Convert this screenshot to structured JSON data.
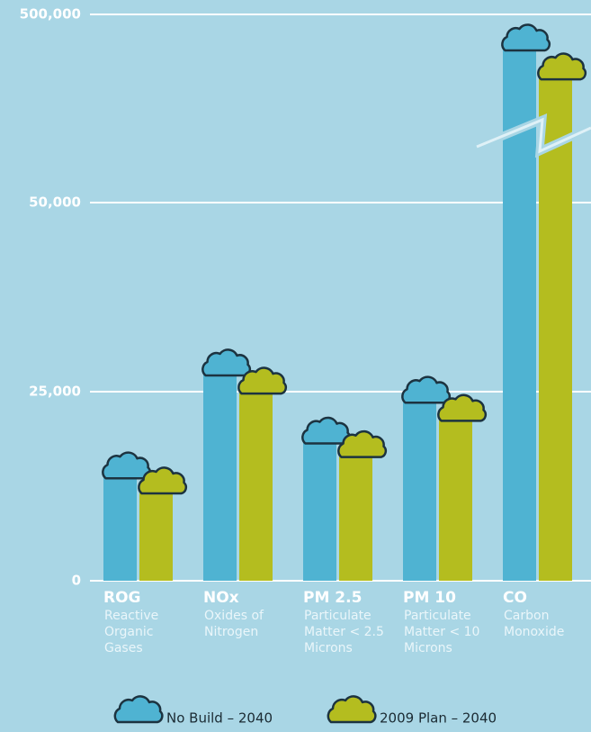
{
  "chart_data": {
    "type": "bar",
    "categories": [
      "ROG",
      "NOx",
      "PM 2.5",
      "PM 10",
      "CO"
    ],
    "descriptions": [
      [
        "Reactive",
        "Organic",
        "Gases"
      ],
      [
        "Oxides of",
        "Nitrogen"
      ],
      [
        "Particulate",
        "Matter < 2.5",
        "Microns"
      ],
      [
        "Particulate",
        "Matter < 10",
        "Microns"
      ],
      [
        "Carbon",
        "Monoxide"
      ]
    ],
    "series": [
      {
        "name": "No Build – 2040",
        "color": "#4fb3d2",
        "values": [
          14500,
          28100,
          19100,
          24500,
          431000
        ]
      },
      {
        "name": "2009 Plan – 2040",
        "color": "#b4bd1f",
        "values": [
          12500,
          25700,
          17300,
          22100,
          362000
        ]
      }
    ],
    "ylim": [
      0,
      500000
    ],
    "ybreak": 50000,
    "yticks": [
      0,
      {
        "value": 25000,
        "label": "25,000"
      },
      {
        "value": 50000,
        "label": "50,000"
      },
      {
        "value": 500000,
        "label": "500,000"
      }
    ],
    "grid": true,
    "legend": "bottom"
  }
}
